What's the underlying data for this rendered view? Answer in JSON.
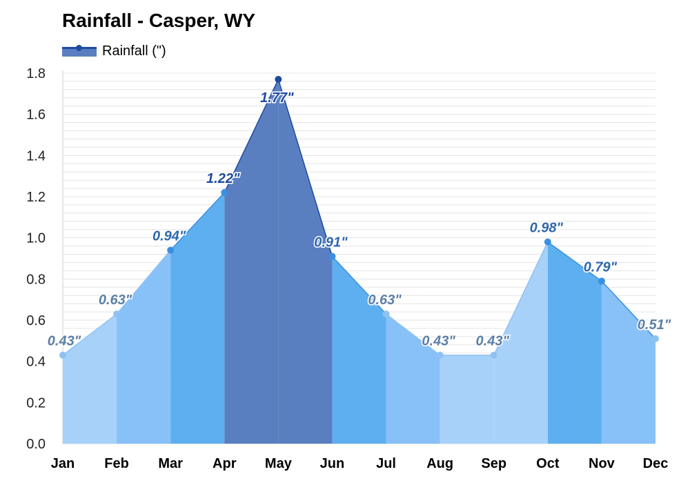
{
  "chart_data": {
    "type": "area",
    "title": "Rainfall - Casper, WY",
    "legend": {
      "label": "Rainfall (\")",
      "placement": "top-left"
    },
    "xlabel": "",
    "ylabel": "",
    "ylim": [
      0,
      1.8
    ],
    "yticks": [
      "0.0",
      "0.2",
      "0.4",
      "0.6",
      "0.8",
      "1.0",
      "1.2",
      "1.4",
      "1.6",
      "1.8"
    ],
    "grid": true,
    "categories": [
      "Jan",
      "Feb",
      "Mar",
      "Apr",
      "May",
      "Jun",
      "Jul",
      "Aug",
      "Sep",
      "Oct",
      "Nov",
      "Dec"
    ],
    "series": [
      {
        "name": "Rainfall (\")",
        "values": [
          0.43,
          0.63,
          0.94,
          1.22,
          1.77,
          0.91,
          0.63,
          0.43,
          0.43,
          0.98,
          0.79,
          0.51
        ],
        "labels": [
          "0.43\"",
          "0.63\"",
          "0.94\"",
          "1.22\"",
          "1.77\"",
          "0.91\"",
          "0.63\"",
          "0.43\"",
          "0.43\"",
          "0.98\"",
          "0.79\"",
          "0.51\""
        ]
      }
    ],
    "colors": {
      "low": "#a7d1f9",
      "medium": "#87c1f7",
      "high": "#5eafef",
      "peak": "#5a7fc0",
      "label_low": "#5b7fa6",
      "label_mid": "#2f67ad",
      "label_high": "#1e4aa0",
      "grid": "#e3e3e3"
    }
  }
}
